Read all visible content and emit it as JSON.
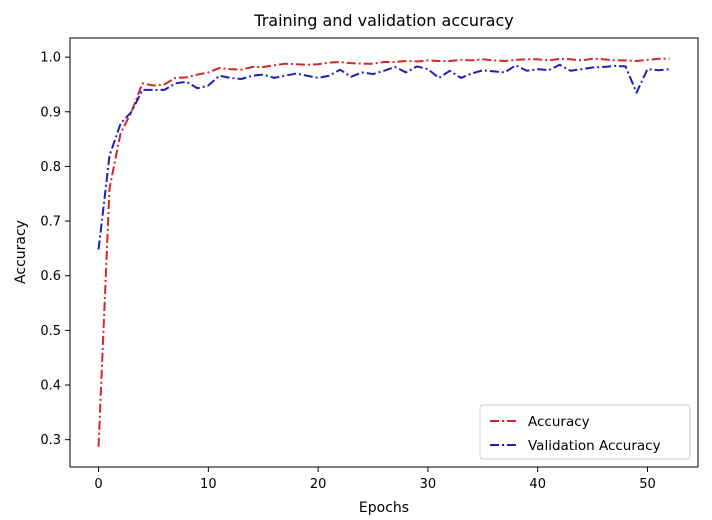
{
  "chart_data": {
    "type": "line",
    "title": "Training and validation accuracy",
    "xlabel": "Epochs",
    "ylabel": "Accuracy",
    "xlim": [
      -2.6,
      54.6
    ],
    "ylim": [
      0.25,
      1.035
    ],
    "xticks": [
      0,
      10,
      20,
      30,
      40,
      50
    ],
    "yticks": [
      0.3,
      0.4,
      0.5,
      0.6,
      0.7,
      0.8,
      0.9,
      1.0
    ],
    "ytick_labels": [
      "0.3",
      "0.4",
      "0.5",
      "0.6",
      "0.7",
      "0.8",
      "0.9",
      "1.0"
    ],
    "grid": false,
    "legend_position": "lower-right",
    "series": [
      {
        "name": "Accuracy",
        "color": "#d62728",
        "linestyle": "dash-dot",
        "x": [
          0,
          1,
          2,
          3,
          4,
          5,
          6,
          7,
          8,
          9,
          10,
          11,
          12,
          13,
          14,
          15,
          16,
          17,
          18,
          19,
          20,
          21,
          22,
          23,
          24,
          25,
          26,
          27,
          28,
          29,
          30,
          31,
          32,
          33,
          34,
          35,
          36,
          37,
          38,
          39,
          40,
          41,
          42,
          43,
          44,
          45,
          46,
          47,
          48,
          49,
          50,
          51,
          52
        ],
        "values": [
          0.287,
          0.76,
          0.86,
          0.9,
          0.952,
          0.948,
          0.95,
          0.962,
          0.963,
          0.968,
          0.972,
          0.98,
          0.978,
          0.977,
          0.982,
          0.982,
          0.985,
          0.988,
          0.987,
          0.986,
          0.987,
          0.99,
          0.991,
          0.989,
          0.988,
          0.988,
          0.991,
          0.991,
          0.993,
          0.992,
          0.994,
          0.993,
          0.993,
          0.995,
          0.994,
          0.996,
          0.994,
          0.993,
          0.995,
          0.996,
          0.996,
          0.994,
          0.997,
          0.996,
          0.994,
          0.997,
          0.996,
          0.994,
          0.994,
          0.993,
          0.995,
          0.997,
          0.997
        ]
      },
      {
        "name": "Validation Accuracy",
        "color": "#1f1fbf",
        "linestyle": "dash-dot",
        "x": [
          0,
          1,
          2,
          3,
          4,
          5,
          6,
          7,
          8,
          9,
          10,
          11,
          12,
          13,
          14,
          15,
          16,
          17,
          18,
          19,
          20,
          21,
          22,
          23,
          24,
          25,
          26,
          27,
          28,
          29,
          30,
          31,
          32,
          33,
          34,
          35,
          36,
          37,
          38,
          39,
          40,
          41,
          42,
          43,
          44,
          45,
          46,
          47,
          48,
          49,
          50,
          51,
          52
        ],
        "values": [
          0.648,
          0.82,
          0.878,
          0.9,
          0.94,
          0.94,
          0.94,
          0.952,
          0.955,
          0.943,
          0.948,
          0.966,
          0.962,
          0.96,
          0.966,
          0.968,
          0.962,
          0.966,
          0.97,
          0.966,
          0.962,
          0.966,
          0.977,
          0.964,
          0.972,
          0.969,
          0.975,
          0.982,
          0.972,
          0.983,
          0.978,
          0.962,
          0.975,
          0.962,
          0.97,
          0.976,
          0.974,
          0.972,
          0.985,
          0.975,
          0.978,
          0.976,
          0.986,
          0.975,
          0.978,
          0.981,
          0.982,
          0.984,
          0.983,
          0.935,
          0.978,
          0.976,
          0.978
        ]
      }
    ]
  }
}
